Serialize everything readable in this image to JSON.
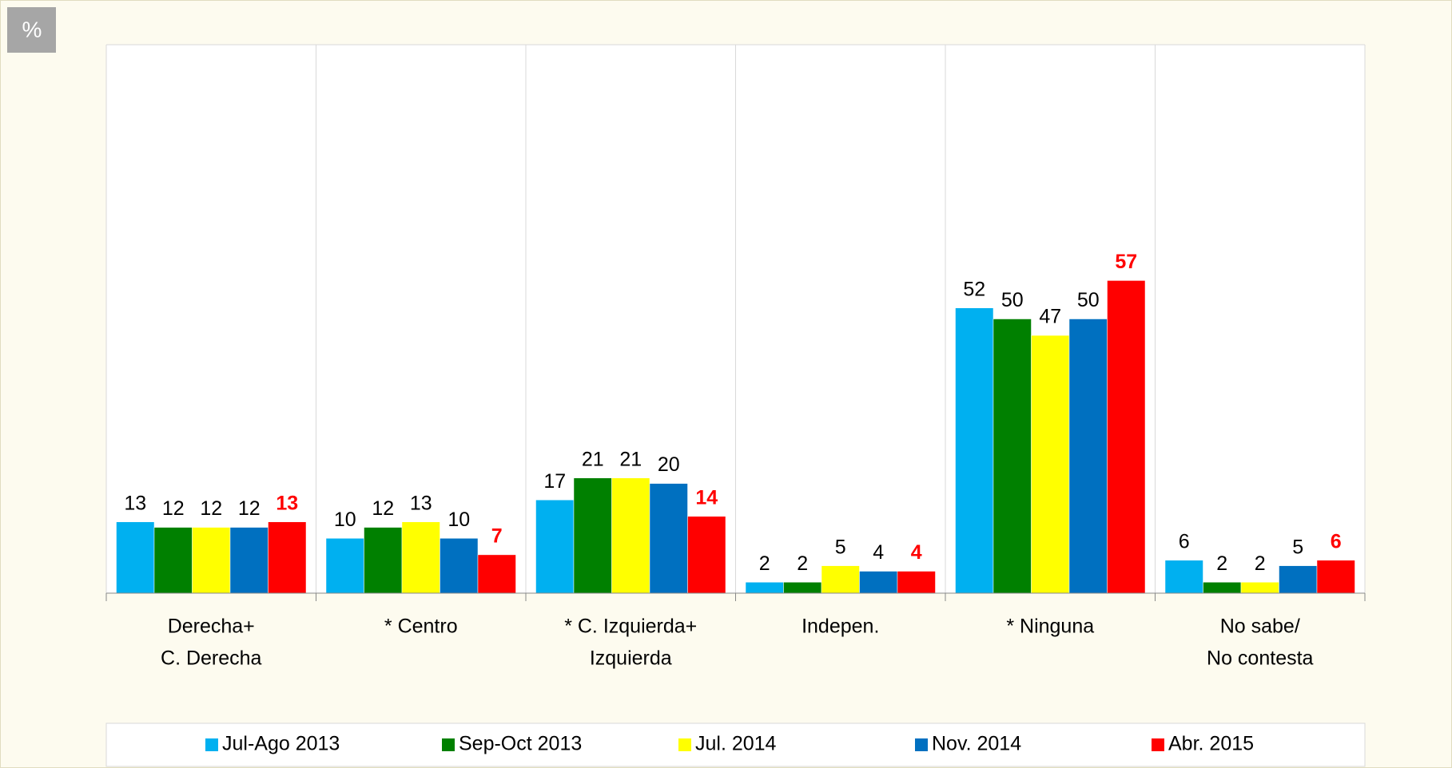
{
  "chart_data": {
    "type": "bar",
    "y_label": "%",
    "categories": [
      [
        "Derecha+",
        "C. Derecha"
      ],
      [
        "* Centro"
      ],
      [
        "* C. Izquierda+",
        "Izquierda"
      ],
      [
        "Indepen."
      ],
      [
        "* Ninguna"
      ],
      [
        "No sabe/",
        "No contesta"
      ]
    ],
    "series": [
      {
        "name": "Jul-Ago 2013",
        "color": "#00b0f0",
        "values": [
          13,
          10,
          17,
          2,
          52,
          6
        ]
      },
      {
        "name": "Sep-Oct 2013",
        "color": "#008000",
        "values": [
          12,
          12,
          21,
          2,
          50,
          2
        ]
      },
      {
        "name": "Jul. 2014",
        "color": "#ffff00",
        "values": [
          12,
          13,
          21,
          5,
          47,
          2
        ]
      },
      {
        "name": "Nov. 2014",
        "color": "#0070c0",
        "values": [
          12,
          10,
          20,
          4,
          50,
          5
        ]
      },
      {
        "name": "Abr. 2015",
        "color": "#ff0000",
        "values": [
          13,
          7,
          14,
          4,
          57,
          6
        ],
        "emphasis": true
      }
    ],
    "ylim": [
      0,
      100
    ],
    "legend": "bottom"
  }
}
